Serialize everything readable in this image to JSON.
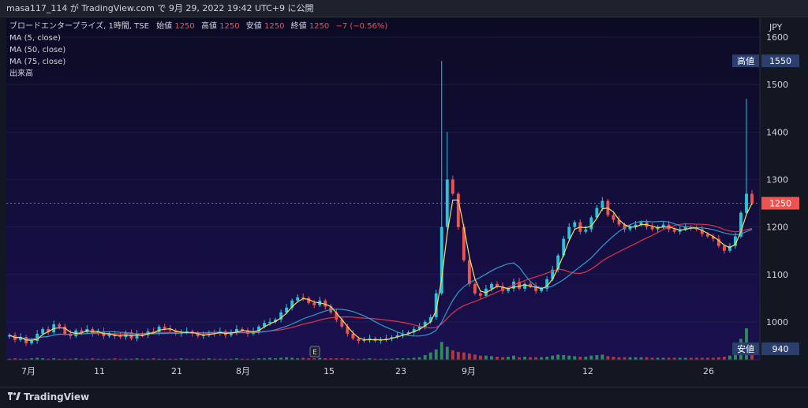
{
  "header": {
    "publish_line": "masa117_114 が TradingView.com で 9月 29, 2022 19:42 UTC+9 に公開"
  },
  "legend": {
    "title": "ブロードエンタープライズ, 1時間, TSE",
    "open_label": "始値",
    "open_value": "1250",
    "high_label": "高値",
    "high_value": "1250",
    "low_label": "安値",
    "low_value": "1250",
    "close_label": "終値",
    "close_value": "1250",
    "change": "−7 (−0.56%)",
    "ma5": "MA (5, close)",
    "ma50": "MA (50, close)",
    "ma75": "MA (75, close)",
    "volume": "出来高"
  },
  "price_axis": {
    "currency": "JPY",
    "ticks": [
      "1600",
      "1500",
      "1400",
      "1300",
      "1200",
      "1100",
      "1000"
    ],
    "high_tag_label": "高値",
    "high_tag_value": "1550",
    "last_tag_value": "1250",
    "low_tag_label": "安値",
    "low_tag_value": "940"
  },
  "time_axis": {
    "ticks": [
      "7月",
      "11",
      "21",
      "8月",
      "15",
      "23",
      "9月",
      "12",
      "26"
    ]
  },
  "earnings_marker": "E",
  "footer": {
    "brand": "TradingView"
  },
  "colors": {
    "background": "#131722",
    "plot_bg_top": "#0c0b24",
    "plot_bg_bottom": "#1a1050",
    "up": "#26c6da",
    "down": "#ef5350",
    "ma5": "#f5e05c",
    "ma50": "#2e9ad0",
    "ma75": "#e0334a",
    "tag": "#2a3f6e",
    "last_tag": "#ef5350",
    "grid": "#252a3a"
  },
  "chart_data": {
    "type": "candlestick",
    "title": "ブロードエンタープライズ, 1時間, TSE",
    "ylabel": "JPY",
    "ylim": [
      920,
      1640
    ],
    "y_ticks": [
      1000,
      1100,
      1200,
      1300,
      1400,
      1500,
      1600
    ],
    "x_tick_labels": [
      "7月",
      "11",
      "21",
      "8月",
      "15",
      "23",
      "9月",
      "12",
      "26"
    ],
    "period_high": 1550,
    "period_low": 940,
    "last": 1250,
    "last_change": -7,
    "last_change_pct": -0.56,
    "close_path": [
      972,
      962,
      968,
      955,
      960,
      975,
      985,
      978,
      995,
      990,
      975,
      970,
      982,
      978,
      985,
      975,
      980,
      970,
      975,
      970,
      968,
      978,
      965,
      975,
      972,
      980,
      978,
      990,
      985,
      982,
      975,
      978,
      980,
      975,
      970,
      972,
      978,
      975,
      980,
      972,
      978,
      985,
      982,
      975,
      980,
      990,
      998,
      1000,
      1005,
      1020,
      1030,
      1045,
      1052,
      1050,
      1040,
      1035,
      1045,
      1032,
      1020,
      1005,
      990,
      975,
      965,
      960,
      962,
      965,
      960,
      962,
      965,
      968,
      972,
      975,
      978,
      985,
      990,
      1000,
      1010,
      1060,
      1200,
      1300,
      1270,
      1200,
      1130,
      1080,
      1060,
      1055,
      1070,
      1080,
      1075,
      1065,
      1070,
      1085,
      1070,
      1080,
      1075,
      1065,
      1070,
      1090,
      1110,
      1140,
      1175,
      1200,
      1210,
      1190,
      1195,
      1220,
      1240,
      1255,
      1225,
      1215,
      1205,
      1195,
      1200,
      1205,
      1210,
      1200,
      1195,
      1200,
      1205,
      1195,
      1190,
      1195,
      1200,
      1198,
      1195,
      1185,
      1180,
      1175,
      1160,
      1150,
      1160,
      1180,
      1230,
      1270,
      1250
    ],
    "volume_path": [
      2,
      3,
      2,
      2,
      3,
      4,
      3,
      2,
      3,
      2,
      2,
      2,
      3,
      2,
      2,
      3,
      2,
      2,
      2,
      3,
      2,
      2,
      2,
      3,
      2,
      2,
      3,
      2,
      2,
      2,
      2,
      3,
      2,
      2,
      2,
      2,
      3,
      2,
      2,
      2,
      2,
      3,
      2,
      2,
      2,
      3,
      3,
      4,
      3,
      4,
      5,
      4,
      3,
      4,
      3,
      3,
      4,
      3,
      3,
      3,
      3,
      3,
      2,
      2,
      2,
      3,
      2,
      2,
      2,
      2,
      3,
      3,
      3,
      4,
      5,
      9,
      14,
      20,
      34,
      25,
      18,
      15,
      14,
      12,
      10,
      8,
      8,
      7,
      6,
      5,
      6,
      8,
      5,
      6,
      5,
      5,
      5,
      6,
      8,
      10,
      9,
      8,
      7,
      6,
      6,
      8,
      9,
      10,
      7,
      6,
      5,
      5,
      5,
      5,
      5,
      5,
      4,
      4,
      4,
      4,
      4,
      4,
      4,
      4,
      4,
      4,
      4,
      4,
      5,
      6,
      8,
      12,
      40,
      60,
      20
    ]
  }
}
